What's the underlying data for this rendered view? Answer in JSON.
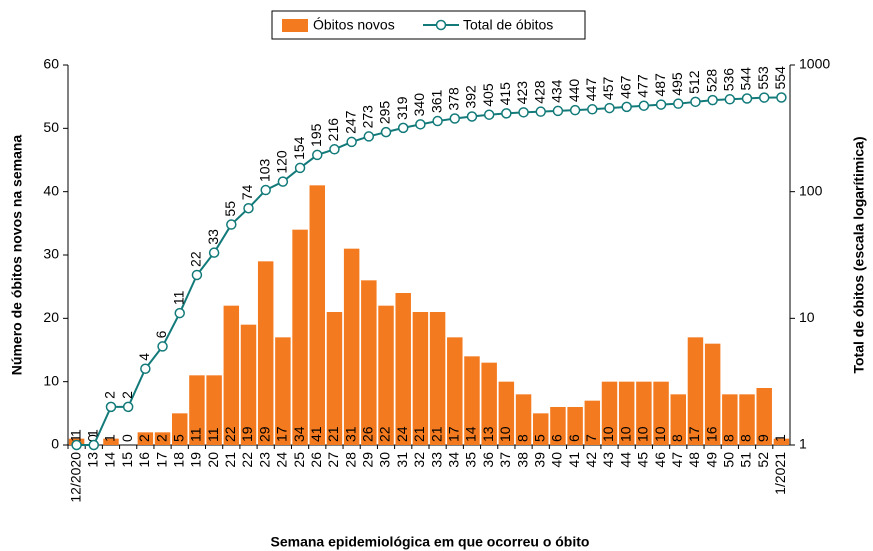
{
  "chart_data": {
    "type": "bar",
    "x_label": "Semana epidemiológica em que ocorreu o óbito",
    "y_label": "Número de óbitos novos na semana",
    "y2_label": "Total de óbitos (escala logarítimica)",
    "categories": [
      "12/2020",
      "13",
      "14",
      "15",
      "16",
      "17",
      "18",
      "19",
      "20",
      "21",
      "22",
      "23",
      "24",
      "25",
      "26",
      "27",
      "28",
      "29",
      "30",
      "31",
      "32",
      "33",
      "34",
      "35",
      "36",
      "37",
      "38",
      "39",
      "40",
      "41",
      "42",
      "43",
      "44",
      "45",
      "46",
      "47",
      "48",
      "49",
      "50",
      "51",
      "52",
      "1/2021"
    ],
    "series": [
      {
        "name": "Óbitos novos",
        "type": "bar",
        "color": "#f47a1f",
        "values": [
          1,
          0,
          1,
          0,
          2,
          2,
          5,
          11,
          11,
          22,
          19,
          29,
          17,
          34,
          41,
          21,
          31,
          26,
          22,
          24,
          21,
          21,
          17,
          14,
          13,
          10,
          8,
          5,
          6,
          6,
          7,
          10,
          10,
          10,
          10,
          8,
          17,
          16,
          8,
          8,
          9,
          1
        ]
      },
      {
        "name": "Total de óbitos",
        "type": "line",
        "axis": "y2",
        "color": "#137a7a",
        "values": [
          1,
          1,
          2,
          2,
          4,
          6,
          11,
          22,
          33,
          55,
          74,
          103,
          120,
          154,
          195,
          216,
          247,
          273,
          295,
          319,
          340,
          361,
          378,
          392,
          405,
          415,
          423,
          428,
          434,
          440,
          447,
          457,
          467,
          477,
          487,
          495,
          512,
          528,
          536,
          544,
          553,
          554
        ]
      }
    ],
    "ylim": [
      0,
      60
    ],
    "yticks": [
      0,
      10,
      20,
      30,
      40,
      50,
      60
    ],
    "y2lim": [
      1,
      1000
    ],
    "y2ticks": [
      1,
      10,
      100,
      1000
    ],
    "y2log": true,
    "legend": "top"
  }
}
